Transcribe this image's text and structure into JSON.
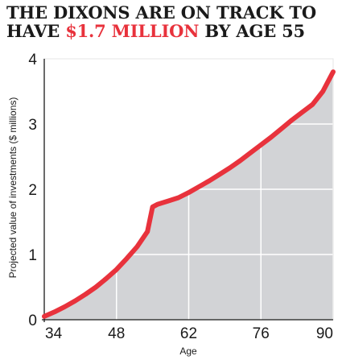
{
  "header": {
    "title_line1": "THE DIXONS ARE ON TRACK TO",
    "title_line2_prefix": "HAVE ",
    "title_line2_highlight": "$1.7 MILLION",
    "title_line2_suffix": " BY AGE 55"
  },
  "colors": {
    "line": "#e8323c",
    "area": "#d2d3d6",
    "grid": "#ffffff",
    "text": "#1a1a1a"
  },
  "chart_data": {
    "type": "area",
    "title": "THE DIXONS ARE ON TRACK TO HAVE $1.7 MILLION BY AGE 55",
    "xlabel": "Age",
    "ylabel": "Projected value of investments ($ millions)",
    "xlim": [
      34,
      90
    ],
    "ylim": [
      0,
      4
    ],
    "xticks": [
      34,
      48,
      62,
      76,
      90
    ],
    "yticks": [
      0,
      1,
      2,
      3,
      4
    ],
    "grid": true,
    "series": [
      {
        "x": [
          34,
          36,
          38,
          40,
          42,
          44,
          46,
          48,
          50,
          52,
          54,
          55,
          56,
          58,
          60,
          62,
          64,
          66,
          68,
          70,
          72,
          74,
          76,
          78,
          80,
          82,
          84,
          86,
          88,
          90
        ],
        "values": [
          0.05,
          0.12,
          0.2,
          0.29,
          0.39,
          0.5,
          0.63,
          0.77,
          0.94,
          1.12,
          1.35,
          1.73,
          1.77,
          1.82,
          1.87,
          1.95,
          2.04,
          2.13,
          2.23,
          2.33,
          2.44,
          2.56,
          2.68,
          2.8,
          2.93,
          3.06,
          3.18,
          3.3,
          3.5,
          3.8
        ]
      }
    ]
  }
}
